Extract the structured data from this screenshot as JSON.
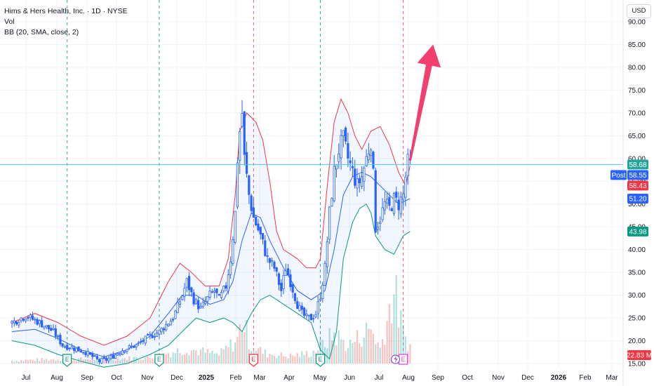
{
  "legend": {
    "title": "Hims & Hers Health, Inc. · 1D · NYSE",
    "vol": "Vol",
    "bb": "BB (20, SMA, close, 2)"
  },
  "currency": "USD",
  "colors": {
    "up": "#26a69a",
    "down": "#ef5350",
    "candle": "#2962ff",
    "basis": "#2962ff",
    "upper": "#f23645",
    "lower": "#089981",
    "arrow": "#f23f6e",
    "price_line": "#4fc3f7"
  },
  "chart_data": {
    "type": "candlestick",
    "ylim": [
      14,
      92
    ],
    "y_ticks": [
      15,
      20,
      25,
      30,
      35,
      40,
      45,
      50,
      55,
      60,
      65,
      70,
      75,
      80,
      85,
      90
    ],
    "y_tick_labels": [
      "15.00",
      "20.00",
      "25.00",
      "30.00",
      "35.00",
      "40.00",
      "45.00",
      "50.00",
      "55.00",
      "60.00",
      "65.00",
      "70.00",
      "75.00",
      "80.00",
      "85.00",
      "90.00"
    ],
    "x_labels": [
      {
        "label": "Jul",
        "bold": false
      },
      {
        "label": "Aug",
        "bold": false
      },
      {
        "label": "Sep",
        "bold": false
      },
      {
        "label": "Oct",
        "bold": false
      },
      {
        "label": "Nov",
        "bold": false
      },
      {
        "label": "Dec",
        "bold": false
      },
      {
        "label": "2025",
        "bold": true
      },
      {
        "label": "Feb",
        "bold": false
      },
      {
        "label": "Mar",
        "bold": false
      },
      {
        "label": "Apr",
        "bold": false
      },
      {
        "label": "May",
        "bold": false
      },
      {
        "label": "Jun",
        "bold": false
      },
      {
        "label": "Jul",
        "bold": false
      },
      {
        "label": "Aug",
        "bold": false
      },
      {
        "label": "Sep",
        "bold": false
      },
      {
        "label": "Oct",
        "bold": false
      },
      {
        "label": "Nov",
        "bold": false
      },
      {
        "label": "Dec",
        "bold": false
      },
      {
        "label": "2026",
        "bold": true
      },
      {
        "label": "Feb",
        "bold": false
      },
      {
        "label": "Mar",
        "bold": false
      }
    ],
    "close_path": [
      [
        0,
        24
      ],
      [
        6,
        25.5
      ],
      [
        12,
        24
      ],
      [
        18,
        22
      ],
      [
        22,
        19
      ],
      [
        26,
        18.5
      ],
      [
        32,
        17.5
      ],
      [
        38,
        15.5
      ],
      [
        42,
        16
      ],
      [
        48,
        18
      ],
      [
        54,
        19
      ],
      [
        60,
        21
      ],
      [
        64,
        22
      ],
      [
        70,
        25
      ],
      [
        74,
        30
      ],
      [
        76,
        33
      ],
      [
        79,
        29
      ],
      [
        82,
        27
      ],
      [
        86,
        30
      ],
      [
        88,
        31
      ],
      [
        90,
        29
      ],
      [
        93,
        32
      ],
      [
        95,
        38
      ],
      [
        97,
        48
      ],
      [
        98,
        60
      ],
      [
        99,
        66
      ],
      [
        100,
        70
      ],
      [
        101,
        60
      ],
      [
        103,
        52
      ],
      [
        105,
        47
      ],
      [
        108,
        43
      ],
      [
        111,
        38
      ],
      [
        114,
        36
      ],
      [
        117,
        31
      ],
      [
        119,
        36
      ],
      [
        121,
        33
      ],
      [
        124,
        28
      ],
      [
        126,
        26
      ],
      [
        128,
        25
      ],
      [
        130,
        25
      ],
      [
        132,
        26
      ],
      [
        134,
        30
      ],
      [
        136,
        36
      ],
      [
        138,
        48
      ],
      [
        140,
        57
      ],
      [
        142,
        62
      ],
      [
        144,
        64
      ],
      [
        146,
        60
      ],
      [
        148,
        57
      ],
      [
        150,
        54
      ],
      [
        152,
        56
      ],
      [
        154,
        60
      ],
      [
        156,
        64
      ],
      [
        157,
        56
      ],
      [
        158,
        45
      ],
      [
        160,
        47
      ],
      [
        162,
        50
      ],
      [
        164,
        49
      ],
      [
        166,
        51
      ],
      [
        168,
        50
      ],
      [
        170,
        52
      ],
      [
        171,
        56
      ],
      [
        172,
        59
      ],
      [
        173,
        58.5
      ]
    ],
    "upper_band": [
      [
        0,
        24
      ],
      [
        10,
        26
      ],
      [
        20,
        24
      ],
      [
        30,
        21
      ],
      [
        40,
        19
      ],
      [
        50,
        21
      ],
      [
        60,
        25
      ],
      [
        68,
        33
      ],
      [
        73,
        37
      ],
      [
        78,
        35
      ],
      [
        84,
        32
      ],
      [
        90,
        32
      ],
      [
        94,
        38
      ],
      [
        97,
        52
      ],
      [
        99,
        66
      ],
      [
        102,
        70
      ],
      [
        106,
        68
      ],
      [
        109,
        64
      ],
      [
        112,
        55
      ],
      [
        115,
        44
      ],
      [
        118,
        40
      ],
      [
        124,
        38
      ],
      [
        128,
        36
      ],
      [
        132,
        36
      ],
      [
        134,
        38
      ],
      [
        137,
        54
      ],
      [
        140,
        68
      ],
      [
        143,
        73
      ],
      [
        146,
        70
      ],
      [
        149,
        65
      ],
      [
        152,
        62
      ],
      [
        156,
        66
      ],
      [
        160,
        67
      ],
      [
        164,
        63
      ],
      [
        168,
        57
      ],
      [
        171,
        54
      ],
      [
        173,
        58.4
      ]
    ],
    "basis_line": [
      [
        0,
        22
      ],
      [
        10,
        22.5
      ],
      [
        20,
        20.5
      ],
      [
        30,
        18
      ],
      [
        40,
        16.5
      ],
      [
        50,
        18
      ],
      [
        60,
        21
      ],
      [
        68,
        26
      ],
      [
        74,
        30
      ],
      [
        80,
        30
      ],
      [
        86,
        28
      ],
      [
        92,
        29
      ],
      [
        96,
        33
      ],
      [
        100,
        42
      ],
      [
        104,
        48
      ],
      [
        108,
        47
      ],
      [
        112,
        42
      ],
      [
        118,
        36
      ],
      [
        124,
        31
      ],
      [
        130,
        29
      ],
      [
        136,
        31
      ],
      [
        140,
        40
      ],
      [
        144,
        52
      ],
      [
        148,
        56
      ],
      [
        152,
        57
      ],
      [
        156,
        56
      ],
      [
        160,
        54
      ],
      [
        164,
        52
      ],
      [
        168,
        50
      ],
      [
        173,
        51.2
      ]
    ],
    "lower_band": [
      [
        0,
        20
      ],
      [
        10,
        19
      ],
      [
        20,
        17
      ],
      [
        30,
        15.5
      ],
      [
        40,
        14.2
      ],
      [
        50,
        15
      ],
      [
        60,
        17
      ],
      [
        68,
        19
      ],
      [
        74,
        22
      ],
      [
        80,
        25
      ],
      [
        86,
        24
      ],
      [
        92,
        25
      ],
      [
        96,
        24
      ],
      [
        100,
        22
      ],
      [
        104,
        26
      ],
      [
        108,
        29
      ],
      [
        112,
        30
      ],
      [
        118,
        28
      ],
      [
        124,
        26
      ],
      [
        130,
        24
      ],
      [
        134,
        18
      ],
      [
        138,
        16
      ],
      [
        141,
        22
      ],
      [
        144,
        38
      ],
      [
        148,
        46
      ],
      [
        151,
        49
      ],
      [
        154,
        50
      ],
      [
        156,
        48
      ],
      [
        158,
        43
      ],
      [
        162,
        40
      ],
      [
        166,
        39
      ],
      [
        170,
        43
      ],
      [
        173,
        44
      ]
    ],
    "volume_profile": [
      [
        0,
        0.02
      ],
      [
        20,
        0.03
      ],
      [
        40,
        0.03
      ],
      [
        60,
        0.04
      ],
      [
        70,
        0.08
      ],
      [
        76,
        0.1
      ],
      [
        90,
        0.06
      ],
      [
        98,
        0.16
      ],
      [
        100,
        0.3
      ],
      [
        104,
        0.12
      ],
      [
        110,
        0.07
      ],
      [
        120,
        0.05
      ],
      [
        130,
        0.07
      ],
      [
        136,
        0.14
      ],
      [
        140,
        0.2
      ],
      [
        146,
        0.12
      ],
      [
        156,
        0.24
      ],
      [
        160,
        0.1
      ],
      [
        166,
        0.5
      ],
      [
        170,
        0.2
      ],
      [
        173,
        0.12
      ]
    ],
    "event_lines": [
      {
        "day": 24,
        "color": "#009688"
      },
      {
        "day": 64,
        "color": "#009688"
      },
      {
        "day": 105,
        "color": "#f23645"
      },
      {
        "day": 134,
        "color": "#009688"
      },
      {
        "day": 170,
        "color": "#f23645"
      }
    ],
    "earnings_markers": [
      {
        "day": 24,
        "label": "E",
        "kind": "beat"
      },
      {
        "day": 64,
        "label": "E",
        "kind": "beat"
      },
      {
        "day": 105,
        "label": "E",
        "kind": "miss"
      },
      {
        "day": 134,
        "label": "E",
        "kind": "beat"
      },
      {
        "day": 170,
        "label": "E",
        "kind": "upcoming"
      }
    ],
    "forecast_arrow": {
      "from": [
        173,
        59.5
      ],
      "to": [
        183,
        85
      ]
    },
    "current_price": 58.68,
    "price_tags": [
      {
        "value": 58.68,
        "text": "58.68",
        "color": "#26a69a",
        "label": ""
      },
      {
        "value": 58.55,
        "text": "58.55",
        "color": "#2962ff",
        "label": "Post"
      },
      {
        "value": 58.43,
        "text": "58.43",
        "color": "#f23645",
        "label": ""
      },
      {
        "value": 51.2,
        "text": "51.20",
        "color": "#2962ff",
        "label": ""
      },
      {
        "value": 43.98,
        "text": "43.98",
        "color": "#089981",
        "label": ""
      }
    ],
    "volume_tag": {
      "text": "22.83 M",
      "color": "#f23645"
    }
  }
}
